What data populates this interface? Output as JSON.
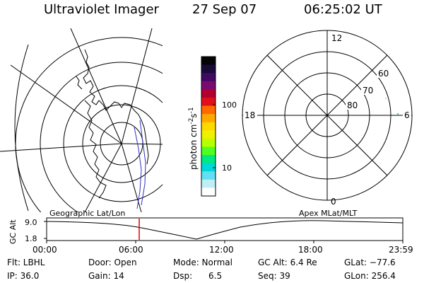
{
  "header": {
    "title": "Ultraviolet Imager",
    "date": "27 Sep 07",
    "time": "06:25:02 UT"
  },
  "colorbar": {
    "unit_main": "photon cm",
    "unit_sup1": "-2",
    "unit_s": "s",
    "unit_sup2": "-1",
    "tick_high": "100",
    "tick_low": "10",
    "colors": [
      "#050505",
      "#1a0a3a",
      "#400a60",
      "#7a0a70",
      "#b00030",
      "#e0101a",
      "#ff6a00",
      "#ffa800",
      "#ffd800",
      "#f0f000",
      "#b8ff00",
      "#50ff20",
      "#00e880",
      "#00d8d8",
      "#60e0f0",
      "#c0eef6",
      "#ffffff"
    ]
  },
  "polar": {
    "label_top": "12",
    "label_left": "18",
    "label_right": "6",
    "label_bottom": "0",
    "lat_60": "60",
    "lat_70": "70",
    "lat_80": "80"
  },
  "timeline": {
    "left_label": "Geographic Lat/Lon",
    "right_label": "Apex MLat/MLT",
    "y_axis_label": "GC Alt",
    "y_top": "9.0",
    "y_bottom": "1.8",
    "x_ticks": [
      "00:00",
      "06:00",
      "12:00",
      "18:00",
      "23:59"
    ],
    "marker_color": "#e00000"
  },
  "footer": {
    "flt": "Flt: LBHL",
    "door": "Door: Open",
    "mode": "Mode: Normal",
    "gcalt": "GC Alt: 6.4 Re",
    "glat": "GLat: −77.6",
    "ip": "IP: 36.0",
    "gain": "Gain: 14",
    "dsp": "Dsp:      6.5",
    "seq": "Seq: 39",
    "glon": "GLon: 256.4"
  }
}
